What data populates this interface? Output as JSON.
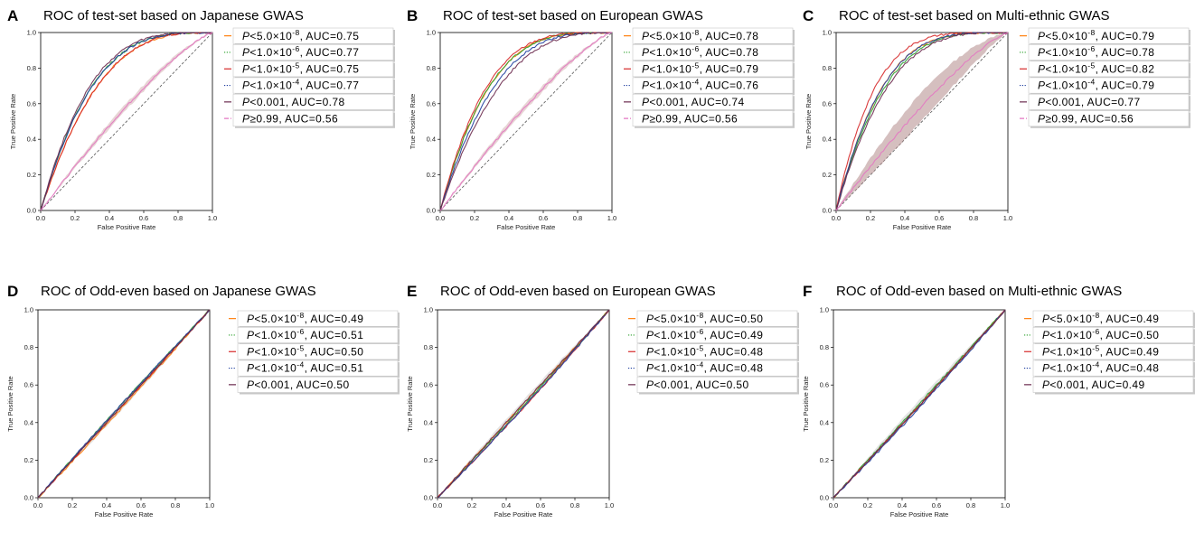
{
  "x_label": "False Positive Rate",
  "y_label": "True Positive Rate",
  "colors": {
    "orange": "#ff7f0e",
    "green": "#2ca02c",
    "red": "#d62728",
    "blue": "#1f3f9e",
    "purple": "#6b2a4e",
    "pink": "#e377c2",
    "diagonal": "#555555"
  },
  "chart_data": [
    {
      "letter": "A",
      "title": "ROC of test-set based on Japanese GWAS",
      "type": "line",
      "xlim": [
        0,
        1
      ],
      "ylim": [
        0,
        1
      ],
      "ticks": [
        "0.0",
        "0.2",
        "0.4",
        "0.6",
        "0.8",
        "1.0"
      ],
      "legend_placement": "outside-right",
      "series": [
        {
          "name": "P<5.0×10-8, AUC=0.75",
          "prefix": "P",
          "mid": "<5.0×10",
          "exp": "-8",
          "suffix": ",  AUC=0.75",
          "color": "orange",
          "dash": "solid",
          "auc": 0.75
        },
        {
          "name": "P<1.0×10-6, AUC=0.77",
          "prefix": "P",
          "mid": "<1.0×10",
          "exp": "-6",
          "suffix": ",  AUC=0.77",
          "color": "green",
          "dash": "dotted",
          "auc": 0.77
        },
        {
          "name": "P<1.0×10-5, AUC=0.75",
          "prefix": "P",
          "mid": "<1.0×10",
          "exp": "-5",
          "suffix": ",  AUC=0.75",
          "color": "red",
          "dash": "solid",
          "auc": 0.75
        },
        {
          "name": "P<1.0×10-4, AUC=0.77",
          "prefix": "P",
          "mid": "<1.0×10",
          "exp": "-4",
          "suffix": ",  AUC=0.77",
          "color": "blue",
          "dash": "dotted",
          "auc": 0.77
        },
        {
          "name": "P<0.001, AUC=0.78",
          "prefix": "P",
          "mid": "<0.001",
          "exp": "",
          "suffix": ",  AUC=0.78",
          "color": "purple",
          "dash": "solid",
          "auc": 0.78
        },
        {
          "name": "P≥0.99, AUC=0.56",
          "prefix": "P",
          "mid": "≥0.99",
          "exp": "",
          "suffix": ",  AUC=0.56",
          "color": "pink",
          "dash": "dashdot",
          "auc": 0.56
        }
      ]
    },
    {
      "letter": "B",
      "title": "ROC of test-set based on European GWAS",
      "type": "line",
      "xlim": [
        0,
        1
      ],
      "ylim": [
        0,
        1
      ],
      "ticks": [
        "0.0",
        "0.2",
        "0.4",
        "0.6",
        "0.8",
        "1.0"
      ],
      "legend_placement": "outside-right",
      "series": [
        {
          "name": "P<5.0×10-8, AUC=0.78",
          "prefix": "P",
          "mid": "<5.0×10",
          "exp": "-8",
          "suffix": ",  AUC=0.78",
          "color": "orange",
          "dash": "solid",
          "auc": 0.78
        },
        {
          "name": "P<1.0×10-6, AUC=0.78",
          "prefix": "P",
          "mid": "<1.0×10",
          "exp": "-6",
          "suffix": ",  AUC=0.78",
          "color": "green",
          "dash": "dotted",
          "auc": 0.78
        },
        {
          "name": "P<1.0×10-5, AUC=0.79",
          "prefix": "P",
          "mid": "<1.0×10",
          "exp": "-5",
          "suffix": ",  AUC=0.79",
          "color": "red",
          "dash": "solid",
          "auc": 0.79
        },
        {
          "name": "P<1.0×10-4, AUC=0.76",
          "prefix": "P",
          "mid": "<1.0×10",
          "exp": "-4",
          "suffix": ",  AUC=0.76",
          "color": "blue",
          "dash": "dotted",
          "auc": 0.76
        },
        {
          "name": "P<0.001, AUC=0.74",
          "prefix": "P",
          "mid": "<0.001",
          "exp": "",
          "suffix": ",  AUC=0.74",
          "color": "purple",
          "dash": "solid",
          "auc": 0.74
        },
        {
          "name": "P≥0.99, AUC=0.56",
          "prefix": "P",
          "mid": "≥0.99",
          "exp": "",
          "suffix": ",  AUC=0.56",
          "color": "pink",
          "dash": "dashdot",
          "auc": 0.56
        }
      ]
    },
    {
      "letter": "C",
      "title": "ROC of test-set based on Multi-ethnic GWAS",
      "type": "line",
      "xlim": [
        0,
        1
      ],
      "ylim": [
        0,
        1
      ],
      "ticks": [
        "0.0",
        "0.2",
        "0.4",
        "0.6",
        "0.8",
        "1.0"
      ],
      "legend_placement": "outside-right",
      "series": [
        {
          "name": "P<5.0×10-8, AUC=0.79",
          "prefix": "P",
          "mid": "<5.0×10",
          "exp": "-8",
          "suffix": ",  AUC=0.79",
          "color": "orange",
          "dash": "solid",
          "auc": 0.79
        },
        {
          "name": "P<1.0×10-6, AUC=0.78",
          "prefix": "P",
          "mid": "<1.0×10",
          "exp": "-6",
          "suffix": ",  AUC=0.78",
          "color": "green",
          "dash": "dotted",
          "auc": 0.78
        },
        {
          "name": "P<1.0×10-5, AUC=0.82",
          "prefix": "P",
          "mid": "<1.0×10",
          "exp": "-5",
          "suffix": ",  AUC=0.82",
          "color": "red",
          "dash": "solid",
          "auc": 0.82
        },
        {
          "name": "P<1.0×10-4, AUC=0.79",
          "prefix": "P",
          "mid": "<1.0×10",
          "exp": "-4",
          "suffix": ",  AUC=0.79",
          "color": "blue",
          "dash": "dotted",
          "auc": 0.79
        },
        {
          "name": "P<0.001, AUC=0.77",
          "prefix": "P",
          "mid": "<0.001",
          "exp": "",
          "suffix": ",  AUC=0.77",
          "color": "purple",
          "dash": "solid",
          "auc": 0.77
        },
        {
          "name": "P≥0.99, AUC=0.56",
          "prefix": "P",
          "mid": "≥0.99",
          "exp": "",
          "suffix": ",  AUC=0.56",
          "color": "pink",
          "dash": "dashdot",
          "auc": 0.56
        }
      ]
    },
    {
      "letter": "D",
      "title": "ROC of Odd-even based on Japanese GWAS",
      "type": "line",
      "xlim": [
        0,
        1
      ],
      "ylim": [
        0,
        1
      ],
      "ticks": [
        "0.0",
        "0.2",
        "0.4",
        "0.6",
        "0.8",
        "1.0"
      ],
      "legend_placement": "outside-right",
      "series": [
        {
          "name": "P<5.0×10-8, AUC=0.49",
          "prefix": "P",
          "mid": "<5.0×10",
          "exp": "-8",
          "suffix": ",  AUC=0.49",
          "color": "orange",
          "dash": "solid",
          "auc": 0.49
        },
        {
          "name": "P<1.0×10-6, AUC=0.51",
          "prefix": "P",
          "mid": "<1.0×10",
          "exp": "-6",
          "suffix": ",  AUC=0.51",
          "color": "green",
          "dash": "dotted",
          "auc": 0.51
        },
        {
          "name": "P<1.0×10-5, AUC=0.50",
          "prefix": "P",
          "mid": "<1.0×10",
          "exp": "-5",
          "suffix": ",  AUC=0.50",
          "color": "red",
          "dash": "solid",
          "auc": 0.5
        },
        {
          "name": "P<1.0×10-4, AUC=0.51",
          "prefix": "P",
          "mid": "<1.0×10",
          "exp": "-4",
          "suffix": ",  AUC=0.51",
          "color": "blue",
          "dash": "dotted",
          "auc": 0.51
        },
        {
          "name": "P<0.001, AUC=0.50",
          "prefix": "P",
          "mid": "<0.001",
          "exp": "",
          "suffix": ",  AUC=0.50",
          "color": "purple",
          "dash": "solid",
          "auc": 0.5
        }
      ]
    },
    {
      "letter": "E",
      "title": "ROC of Odd-even based on European GWAS",
      "type": "line",
      "xlim": [
        0,
        1
      ],
      "ylim": [
        0,
        1
      ],
      "ticks": [
        "0.0",
        "0.2",
        "0.4",
        "0.6",
        "0.8",
        "1.0"
      ],
      "legend_placement": "outside-right",
      "series": [
        {
          "name": "P<5.0×10-8, AUC=0.50",
          "prefix": "P",
          "mid": "<5.0×10",
          "exp": "-8",
          "suffix": ",  AUC=0.50",
          "color": "orange",
          "dash": "solid",
          "auc": 0.5
        },
        {
          "name": "P<1.0×10-6, AUC=0.49",
          "prefix": "P",
          "mid": "<1.0×10",
          "exp": "-6",
          "suffix": ",  AUC=0.49",
          "color": "green",
          "dash": "dotted",
          "auc": 0.49
        },
        {
          "name": "P<1.0×10-5, AUC=0.48",
          "prefix": "P",
          "mid": "<1.0×10",
          "exp": "-5",
          "suffix": ",  AUC=0.48",
          "color": "red",
          "dash": "solid",
          "auc": 0.48
        },
        {
          "name": "P<1.0×10-4, AUC=0.48",
          "prefix": "P",
          "mid": "<1.0×10",
          "exp": "-4",
          "suffix": ",  AUC=0.48",
          "color": "blue",
          "dash": "dotted",
          "auc": 0.48
        },
        {
          "name": "P<0.001, AUC=0.50",
          "prefix": "P",
          "mid": "<0.001",
          "exp": "",
          "suffix": ",  AUC=0.50",
          "color": "purple",
          "dash": "solid",
          "auc": 0.5
        }
      ]
    },
    {
      "letter": "F",
      "title": "ROC of Odd-even based on Multi-ethnic GWAS",
      "type": "line",
      "xlim": [
        0,
        1
      ],
      "ylim": [
        0,
        1
      ],
      "ticks": [
        "0.0",
        "0.2",
        "0.4",
        "0.6",
        "0.8",
        "1.0"
      ],
      "legend_placement": "outside-right",
      "series": [
        {
          "name": "P<5.0×10-8, AUC=0.49",
          "prefix": "P",
          "mid": "<5.0×10",
          "exp": "-8",
          "suffix": ",  AUC=0.49",
          "color": "orange",
          "dash": "solid",
          "auc": 0.49
        },
        {
          "name": "P<1.0×10-6, AUC=0.50",
          "prefix": "P",
          "mid": "<1.0×10",
          "exp": "-6",
          "suffix": ",  AUC=0.50",
          "color": "green",
          "dash": "dotted",
          "auc": 0.5
        },
        {
          "name": "P<1.0×10-5, AUC=0.49",
          "prefix": "P",
          "mid": "<1.0×10",
          "exp": "-5",
          "suffix": ",  AUC=0.49",
          "color": "red",
          "dash": "solid",
          "auc": 0.49
        },
        {
          "name": "P<1.0×10-4, AUC=0.48",
          "prefix": "P",
          "mid": "<1.0×10",
          "exp": "-4",
          "suffix": ",  AUC=0.48",
          "color": "blue",
          "dash": "dotted",
          "auc": 0.48
        },
        {
          "name": "P<0.001, AUC=0.49",
          "prefix": "P",
          "mid": "<0.001",
          "exp": "",
          "suffix": ",  AUC=0.49",
          "color": "purple",
          "dash": "solid",
          "auc": 0.49
        }
      ]
    }
  ]
}
